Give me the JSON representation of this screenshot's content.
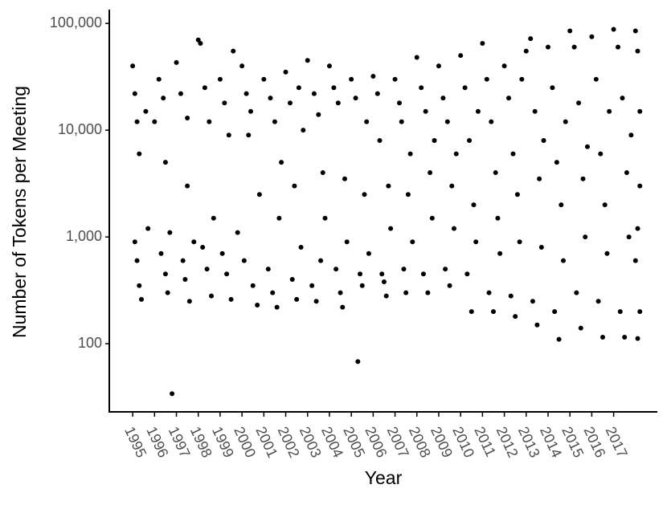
{
  "chart_data": {
    "type": "scatter",
    "log_y": true,
    "color": "#000000",
    "xlabel": "Year",
    "ylabel": "Number of Tokens per Meeting",
    "xlim": [
      1993.93,
      2019.0
    ],
    "ylim": [
      23,
      130000
    ],
    "xticks": [
      1995,
      1996,
      1997,
      1998,
      1999,
      2000,
      2001,
      2002,
      2003,
      2004,
      2005,
      2006,
      2007,
      2008,
      2009,
      2010,
      2011,
      2012,
      2013,
      2014,
      2015,
      2016,
      2017
    ],
    "yticks": [
      100,
      {
        "value": 1000,
        "label": "1,000"
      },
      {
        "value": 10000,
        "label": "10,000"
      },
      {
        "value": 100000,
        "label": "100,000"
      }
    ],
    "x": [
      1995.0,
      1995.1,
      1995.2,
      1995.3,
      1995.1,
      1995.2,
      1995.3,
      1995.4,
      1995.6,
      1995.7,
      1996.0,
      1996.2,
      1996.4,
      1996.3,
      1996.5,
      1996.6,
      1996.8,
      1996.7,
      1996.5,
      1997.0,
      1997.2,
      1997.5,
      1997.3,
      1997.4,
      1997.6,
      1997.8,
      1997.5,
      1998.0,
      1998.1,
      1998.3,
      1998.5,
      1998.2,
      1998.4,
      1998.6,
      1998.7,
      1999.0,
      1999.2,
      1999.4,
      1999.1,
      1999.3,
      1999.5,
      1999.6,
      1999.8,
      2000.0,
      2000.2,
      2000.4,
      2000.3,
      2000.1,
      2000.5,
      2000.7,
      2000.8,
      2001.0,
      2001.3,
      2001.5,
      2001.2,
      2001.4,
      2001.6,
      2001.7,
      2001.8,
      2002.0,
      2002.2,
      2002.6,
      2002.3,
      2002.5,
      2002.7,
      2002.4,
      2002.8,
      2003.0,
      2003.3,
      2003.5,
      2003.2,
      2003.4,
      2003.6,
      2003.7,
      2003.8,
      2004.0,
      2004.2,
      2004.4,
      2004.3,
      2004.5,
      2004.6,
      2004.7,
      2004.8,
      2005.0,
      2005.2,
      2005.3,
      2005.4,
      2005.5,
      2005.6,
      2005.7,
      2005.8,
      2006.0,
      2006.2,
      2006.4,
      2006.5,
      2006.6,
      2006.7,
      2006.8,
      2006.3,
      2007.0,
      2007.2,
      2007.4,
      2007.5,
      2007.6,
      2007.7,
      2007.8,
      2007.3,
      2008.0,
      2008.2,
      2008.4,
      2008.3,
      2008.5,
      2008.6,
      2008.7,
      2008.8,
      2009.0,
      2009.2,
      2009.4,
      2009.3,
      2009.5,
      2009.6,
      2009.7,
      2009.8,
      2010.0,
      2010.2,
      2010.4,
      2010.3,
      2010.5,
      2010.6,
      2010.7,
      2010.8,
      2011.0,
      2011.2,
      2011.4,
      2011.3,
      2011.5,
      2011.6,
      2011.7,
      2011.8,
      2012.0,
      2012.2,
      2012.4,
      2012.3,
      2012.5,
      2012.6,
      2012.7,
      2012.8,
      2013.0,
      2013.2,
      2013.4,
      2013.3,
      2013.5,
      2013.6,
      2013.7,
      2013.8,
      2014.0,
      2014.2,
      2014.4,
      2014.3,
      2014.5,
      2014.6,
      2014.7,
      2014.8,
      2015.0,
      2015.2,
      2015.4,
      2015.3,
      2015.5,
      2015.6,
      2015.7,
      2015.8,
      2016.0,
      2016.2,
      2016.4,
      2016.3,
      2016.5,
      2016.6,
      2016.7,
      2016.8,
      2017.0,
      2017.2,
      2017.4,
      2017.3,
      2017.5,
      2017.6,
      2017.7,
      2017.8,
      2018.0,
      2018.1,
      2018.2,
      2018.0,
      2018.1,
      2018.2,
      2018.1,
      2018.2
    ],
    "values": [
      40000,
      22000,
      12000,
      6000,
      900,
      600,
      350,
      260,
      15000,
      1200,
      12000,
      30000,
      20000,
      700,
      450,
      300,
      34,
      1100,
      5000,
      43000,
      22000,
      13000,
      600,
      400,
      250,
      900,
      3000,
      70000,
      65000,
      25000,
      12000,
      800,
      500,
      280,
      1500,
      30000,
      18000,
      9000,
      700,
      450,
      260,
      55000,
      1100,
      40000,
      22000,
      15000,
      9000,
      600,
      350,
      230,
      2500,
      30000,
      20000,
      12000,
      500,
      300,
      220,
      1500,
      5000,
      35000,
      18000,
      25000,
      400,
      260,
      800,
      3000,
      10000,
      45000,
      22000,
      14000,
      350,
      250,
      600,
      4000,
      1500,
      40000,
      25000,
      18000,
      500,
      300,
      220,
      3500,
      900,
      30000,
      20000,
      68,
      450,
      350,
      2500,
      12000,
      700,
      32000,
      22000,
      450,
      380,
      280,
      3000,
      1200,
      8000,
      30000,
      18000,
      500,
      300,
      2500,
      6000,
      900,
      12000,
      48000,
      25000,
      15000,
      450,
      300,
      4000,
      1500,
      8000,
      40000,
      20000,
      12000,
      500,
      350,
      3000,
      1200,
      6000,
      50000,
      25000,
      8000,
      450,
      200,
      2000,
      900,
      15000,
      65000,
      30000,
      12000,
      300,
      200,
      4000,
      1500,
      700,
      40000,
      20000,
      6000,
      280,
      180,
      2500,
      900,
      30000,
      55000,
      72000,
      15000,
      250,
      150,
      3500,
      800,
      8000,
      60000,
      25000,
      5000,
      200,
      110,
      2000,
      600,
      12000,
      85000,
      60000,
      18000,
      300,
      140,
      3500,
      1000,
      7000,
      75000,
      30000,
      6000,
      250,
      115,
      2000,
      700,
      15000,
      88000,
      60000,
      20000,
      200,
      115,
      4000,
      1000,
      9000,
      85000,
      55000,
      15000,
      600,
      112,
      3000,
      1200,
      200
    ]
  }
}
